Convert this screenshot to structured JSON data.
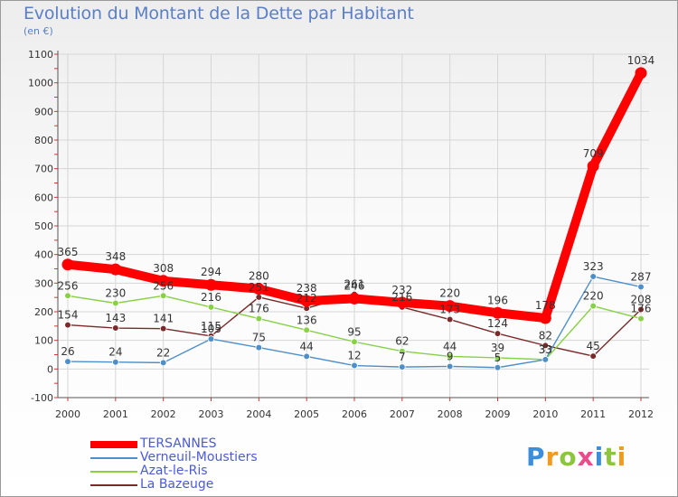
{
  "title": "Evolution du Montant de la Dette par Habitant",
  "subtitle": "(en €)",
  "logo": "Proxiti",
  "chart_data": {
    "type": "line",
    "categories": [
      "2000",
      "2001",
      "2002",
      "2003",
      "2004",
      "2005",
      "2006",
      "2007",
      "2008",
      "2009",
      "2010",
      "2011",
      "2012"
    ],
    "ylim": [
      -100,
      1100
    ],
    "yticks": [
      -100,
      0,
      100,
      200,
      300,
      400,
      500,
      600,
      700,
      800,
      900,
      1000,
      1100
    ],
    "grid": true,
    "legend_position": "bottom-left",
    "series": [
      {
        "name": "TERSANNES",
        "color": "#ff0000",
        "values": [
          365,
          348,
          308,
          294,
          280,
          238,
          246,
          232,
          220,
          196,
          178,
          709,
          1034
        ]
      },
      {
        "name": "Verneuil-Moustiers",
        "color": "#4f8fc9",
        "values": [
          26,
          24,
          22,
          105,
          75,
          44,
          12,
          7,
          9,
          5,
          33,
          323,
          287
        ]
      },
      {
        "name": "Azat-le-Ris",
        "color": "#88d046",
        "values": [
          256,
          230,
          256,
          216,
          176,
          136,
          95,
          62,
          44,
          39,
          33,
          220,
          176
        ]
      },
      {
        "name": "La Bazeuge",
        "color": "#7a2a2a",
        "values": [
          154,
          143,
          141,
          115,
          251,
          212,
          261,
          216,
          173,
          124,
          82,
          45,
          208
        ]
      }
    ],
    "label_series": [
      0,
      1,
      2,
      3
    ]
  }
}
